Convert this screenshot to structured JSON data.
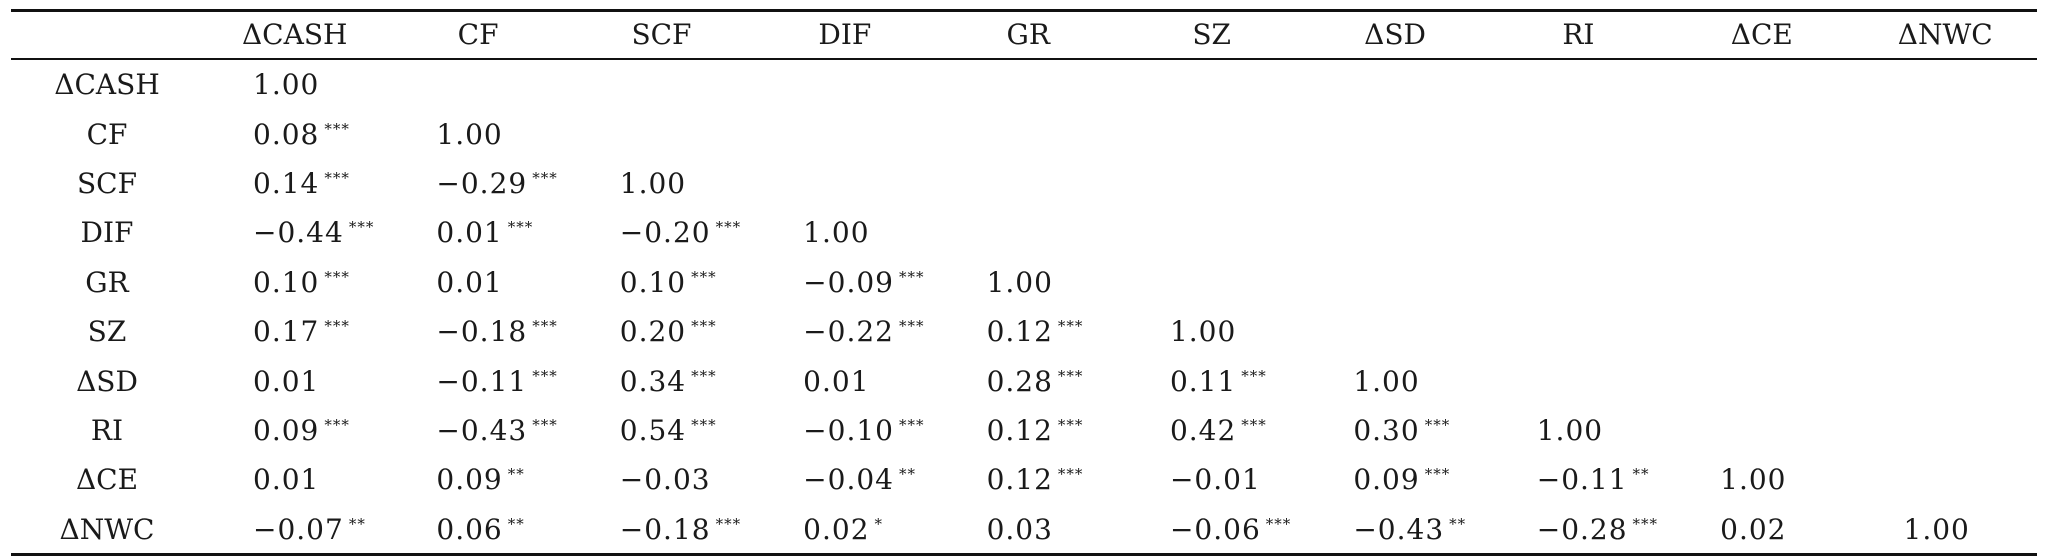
{
  "table": {
    "header": [
      "",
      "ΔCASH",
      "CF",
      "SCF",
      "DIF",
      "GR",
      "SZ",
      "ΔSD",
      "RI",
      "ΔCE",
      "ΔNWC"
    ],
    "rows": [
      {
        "label": "ΔCASH",
        "cells": [
          {
            "v": "1.00",
            "s": ""
          }
        ]
      },
      {
        "label": "CF",
        "cells": [
          {
            "v": "0.08",
            "s": "***"
          },
          {
            "v": "1.00",
            "s": ""
          }
        ]
      },
      {
        "label": "SCF",
        "cells": [
          {
            "v": "0.14",
            "s": "***"
          },
          {
            "v": "−0.29",
            "s": "***"
          },
          {
            "v": "1.00",
            "s": ""
          }
        ]
      },
      {
        "label": "DIF",
        "cells": [
          {
            "v": "−0.44",
            "s": "***"
          },
          {
            "v": "0.01",
            "s": "***"
          },
          {
            "v": "−0.20",
            "s": "***"
          },
          {
            "v": "1.00",
            "s": ""
          }
        ]
      },
      {
        "label": "GR",
        "cells": [
          {
            "v": "0.10",
            "s": "***"
          },
          {
            "v": "0.01",
            "s": ""
          },
          {
            "v": "0.10",
            "s": "***"
          },
          {
            "v": "−0.09",
            "s": "***"
          },
          {
            "v": "1.00",
            "s": ""
          }
        ]
      },
      {
        "label": "SZ",
        "cells": [
          {
            "v": "0.17",
            "s": "***"
          },
          {
            "v": "−0.18",
            "s": "***"
          },
          {
            "v": "0.20",
            "s": "***"
          },
          {
            "v": "−0.22",
            "s": "***"
          },
          {
            "v": "0.12",
            "s": "***"
          },
          {
            "v": "1.00",
            "s": ""
          }
        ]
      },
      {
        "label": "ΔSD",
        "cells": [
          {
            "v": "0.01",
            "s": ""
          },
          {
            "v": "−0.11",
            "s": "***"
          },
          {
            "v": "0.34",
            "s": "***"
          },
          {
            "v": "0.01",
            "s": ""
          },
          {
            "v": "0.28",
            "s": "***"
          },
          {
            "v": "0.11",
            "s": "***"
          },
          {
            "v": "1.00",
            "s": ""
          }
        ]
      },
      {
        "label": "RI",
        "cells": [
          {
            "v": "0.09",
            "s": "***"
          },
          {
            "v": "−0.43",
            "s": "***"
          },
          {
            "v": "0.54",
            "s": "***"
          },
          {
            "v": "−0.10",
            "s": "***"
          },
          {
            "v": "0.12",
            "s": "***"
          },
          {
            "v": "0.42",
            "s": "***"
          },
          {
            "v": "0.30",
            "s": "***"
          },
          {
            "v": "1.00",
            "s": ""
          }
        ]
      },
      {
        "label": "ΔCE",
        "cells": [
          {
            "v": "0.01",
            "s": ""
          },
          {
            "v": "0.09",
            "s": "**"
          },
          {
            "v": "−0.03",
            "s": ""
          },
          {
            "v": "−0.04",
            "s": "**"
          },
          {
            "v": "0.12",
            "s": "***"
          },
          {
            "v": "−0.01",
            "s": ""
          },
          {
            "v": "0.09",
            "s": "***"
          },
          {
            "v": "−0.11",
            "s": "**"
          },
          {
            "v": "1.00",
            "s": ""
          }
        ]
      },
      {
        "label": "ΔNWC",
        "cells": [
          {
            "v": "−0.07",
            "s": "**"
          },
          {
            "v": "0.06",
            "s": "**"
          },
          {
            "v": "−0.18",
            "s": "***"
          },
          {
            "v": "0.02",
            "s": "*"
          },
          {
            "v": "0.03",
            "s": ""
          },
          {
            "v": "−0.06",
            "s": "***"
          },
          {
            "v": "−0.43",
            "s": "**"
          },
          {
            "v": "−0.28",
            "s": "***"
          },
          {
            "v": "0.02",
            "s": ""
          },
          {
            "v": "1.00",
            "s": ""
          }
        ]
      }
    ]
  }
}
